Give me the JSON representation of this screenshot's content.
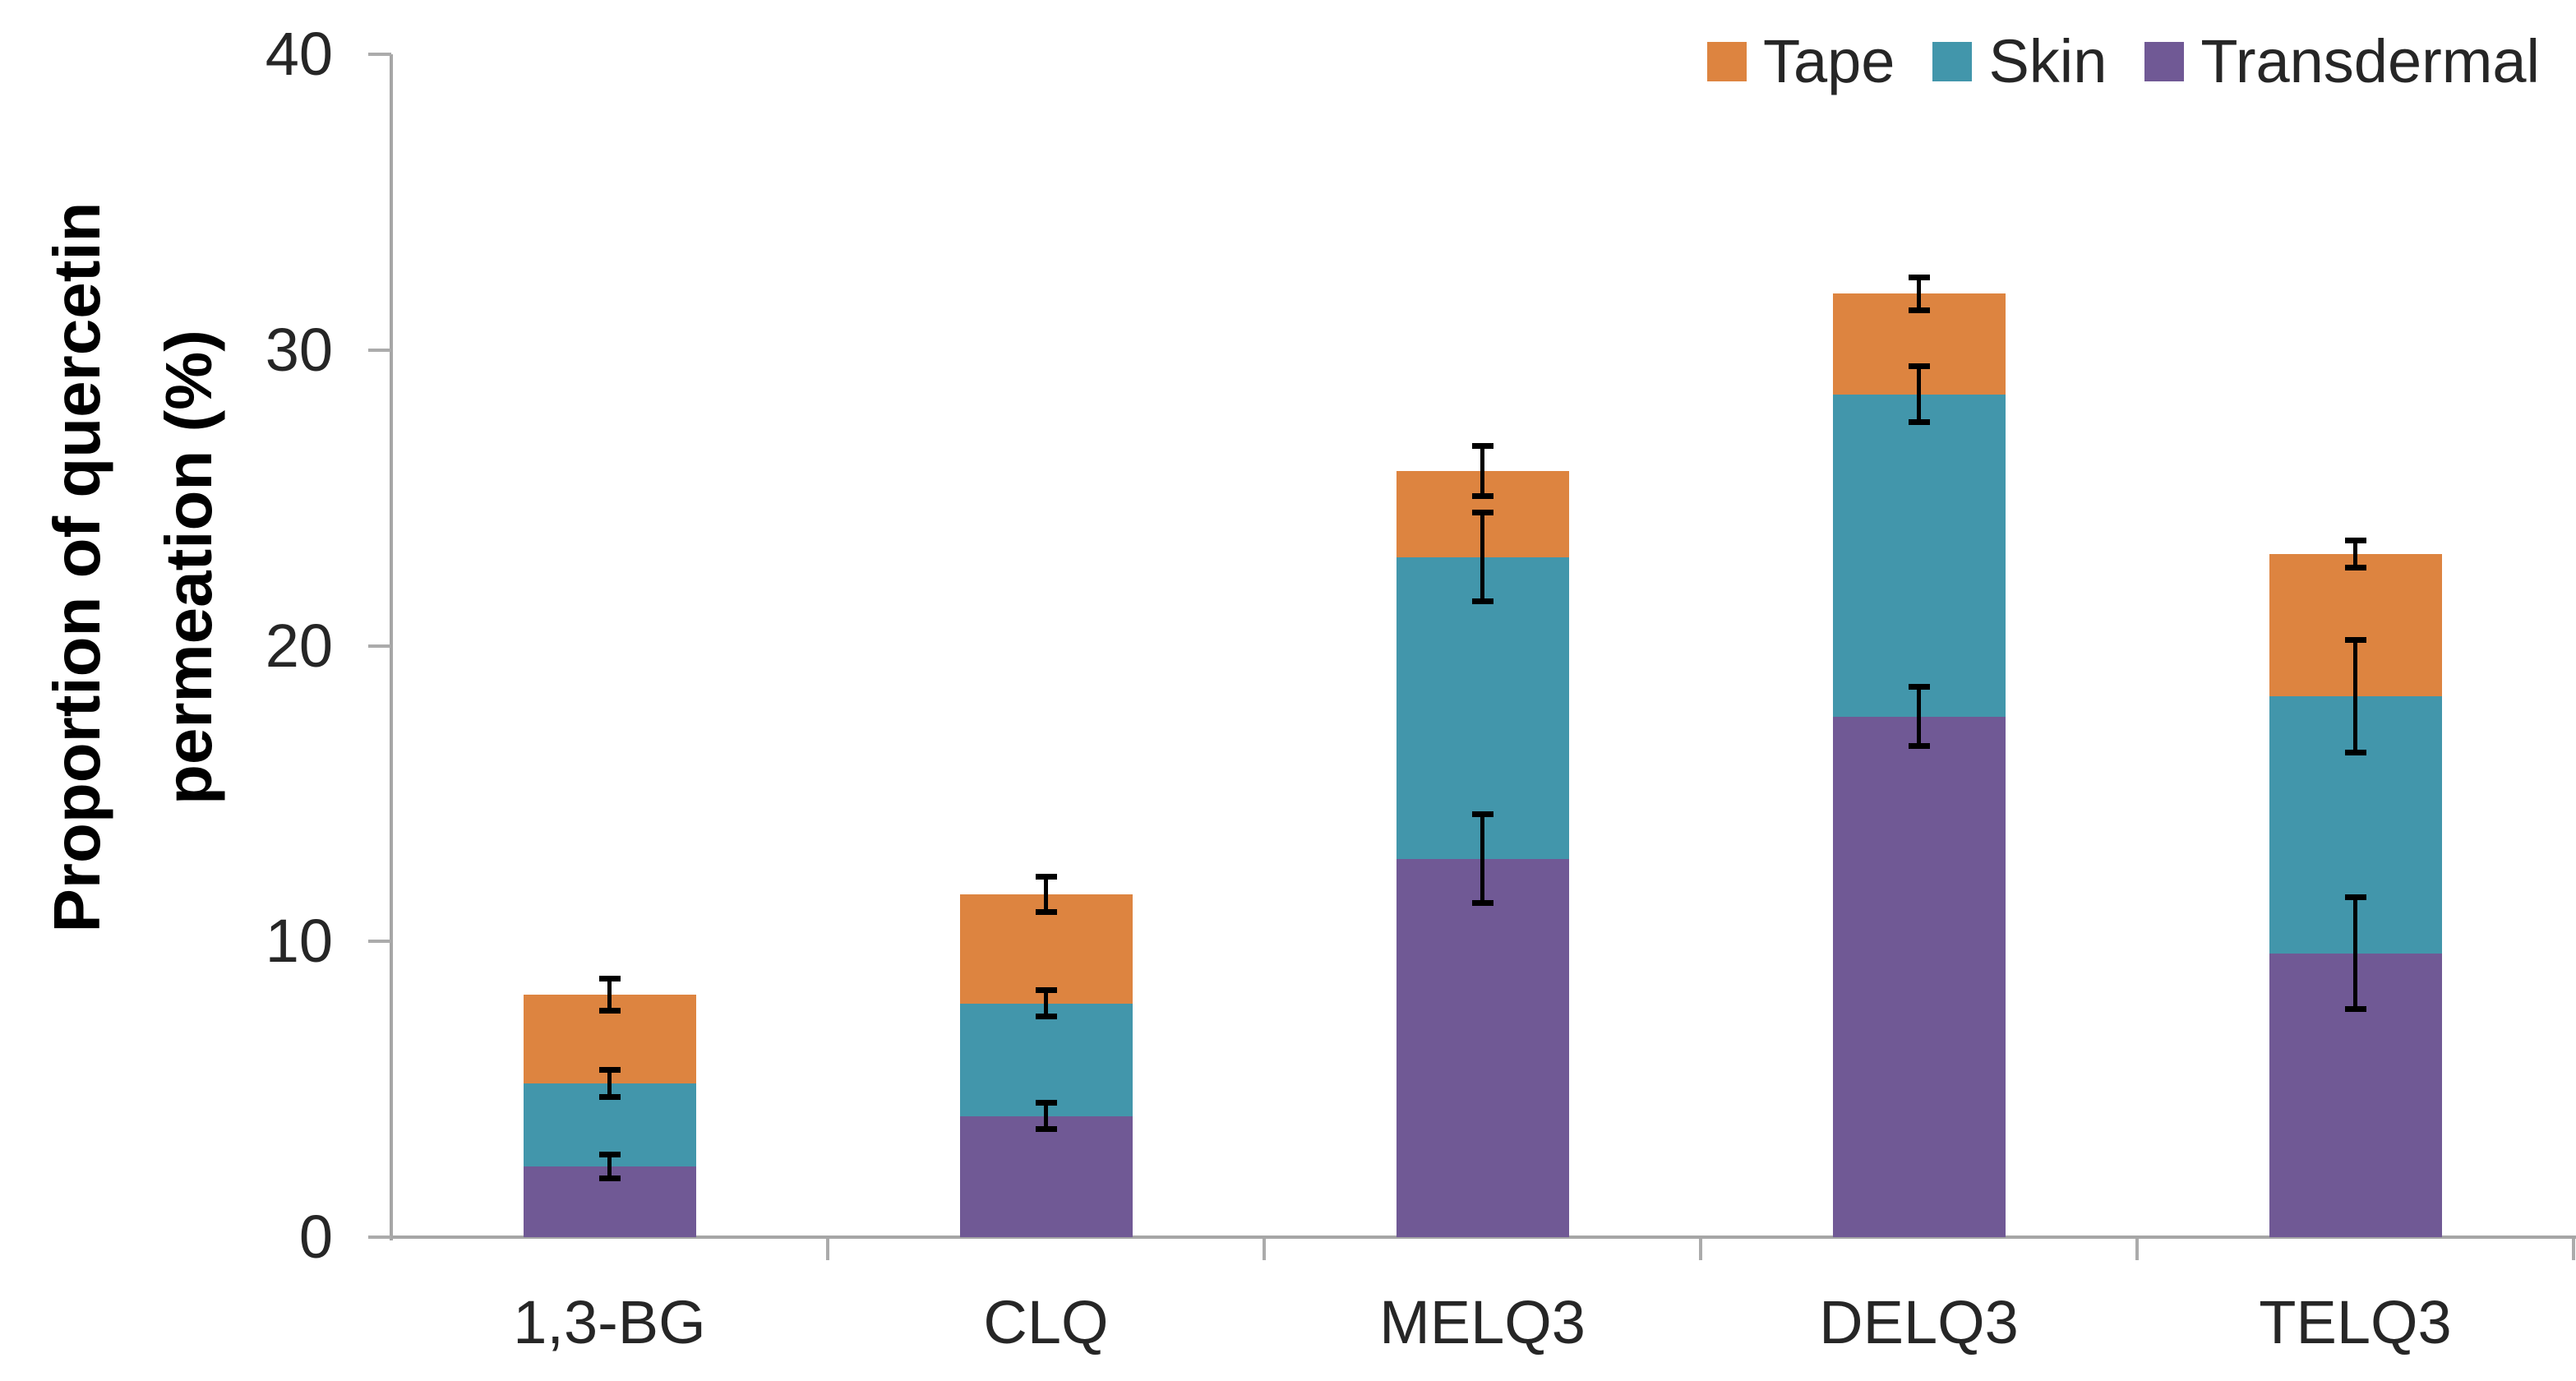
{
  "chart_data": {
    "type": "bar",
    "stacked": true,
    "title": "",
    "xlabel": "",
    "ylabel": "Proportion of quercetin permeation (%)",
    "ylabel_lines": [
      "Proportion of quercetin",
      "permeation (%)"
    ],
    "categories": [
      "1,3-BG",
      "CLQ",
      "MELQ3",
      "DELQ3",
      "TELQ3"
    ],
    "series": [
      {
        "name": "Transdermal",
        "color": "#705995",
        "values": [
          2.4,
          4.1,
          12.8,
          17.6,
          9.6
        ],
        "error": [
          0.4,
          0.45,
          1.5,
          1.0,
          1.9
        ]
      },
      {
        "name": "Skin",
        "color": "#4296AB",
        "values": [
          2.8,
          3.8,
          10.2,
          10.9,
          8.7
        ],
        "error": [
          0.45,
          0.45,
          1.5,
          0.95,
          1.9
        ]
      },
      {
        "name": "Tape",
        "color": "#DD8440",
        "values": [
          3.0,
          3.7,
          2.9,
          3.4,
          4.8
        ],
        "error": [
          0.55,
          0.6,
          0.85,
          0.55,
          0.45
        ]
      }
    ],
    "stack_totals": [
      8.2,
      11.6,
      25.9,
      31.9,
      23.1
    ],
    "ylim": [
      0,
      40
    ],
    "yticks": [
      0,
      10,
      20,
      30,
      40
    ],
    "grid": false,
    "legend": {
      "position": "top-right",
      "items": [
        {
          "label": "Tape",
          "color": "#DD8440"
        },
        {
          "label": "Skin",
          "color": "#4296AB"
        },
        {
          "label": "Transdermal",
          "color": "#705995"
        }
      ]
    },
    "error_bar_color": "#000000",
    "axis_color": "#A6A6A6",
    "text_color": "#262626"
  }
}
